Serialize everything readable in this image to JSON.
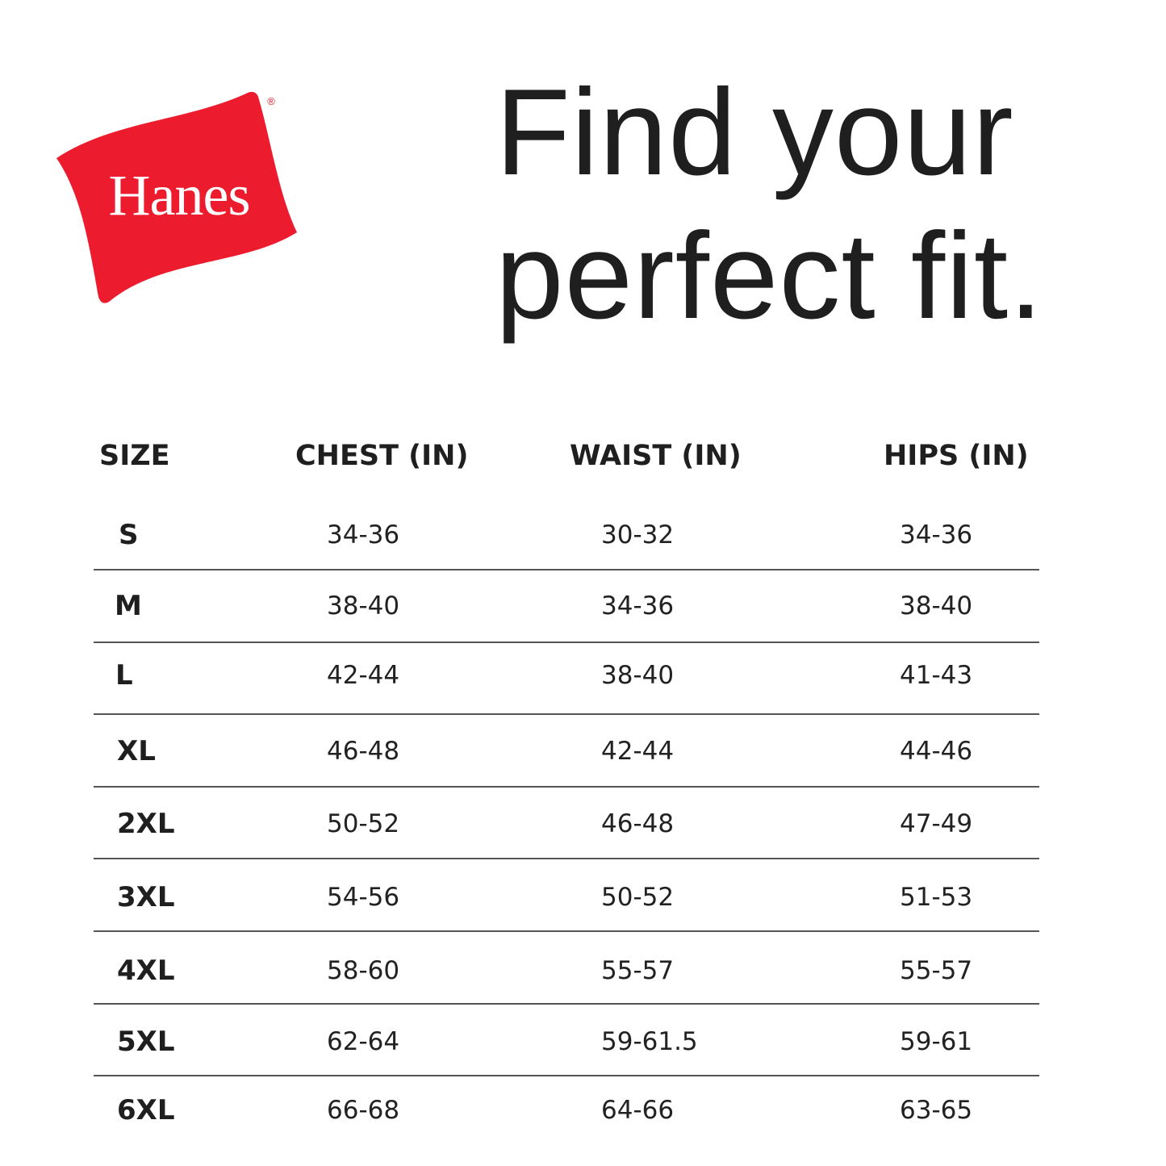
{
  "brand": {
    "logo_text": "Hanes",
    "registered_mark": "®",
    "color": "#e81f2e"
  },
  "headline": {
    "line1": "Find your",
    "line2": "perfect fit."
  },
  "table": {
    "headers": [
      "SIZE",
      "CHEST (IN)",
      "WAIST (IN)",
      "HIPS (IN)"
    ],
    "rows": [
      {
        "size": "S",
        "chest": "34-36",
        "waist": "30-32",
        "hips": "34-36"
      },
      {
        "size": "M",
        "chest": "38-40",
        "waist": "34-36",
        "hips": "38-40"
      },
      {
        "size": "L",
        "chest": "42-44",
        "waist": "38-40",
        "hips": "41-43"
      },
      {
        "size": "XL",
        "chest": "46-48",
        "waist": "42-44",
        "hips": "44-46"
      },
      {
        "size": "2XL",
        "chest": "50-52",
        "waist": "46-48",
        "hips": "47-49"
      },
      {
        "size": "3XL",
        "chest": "54-56",
        "waist": "50-52",
        "hips": "51-53"
      },
      {
        "size": "4XL",
        "chest": "58-60",
        "waist": "55-57",
        "hips": "55-57"
      },
      {
        "size": "5XL",
        "chest": "62-64",
        "waist": "59-61.5",
        "hips": "59-61"
      },
      {
        "size": "6XL",
        "chest": "66-68",
        "waist": "64-66",
        "hips": "63-65"
      }
    ]
  }
}
